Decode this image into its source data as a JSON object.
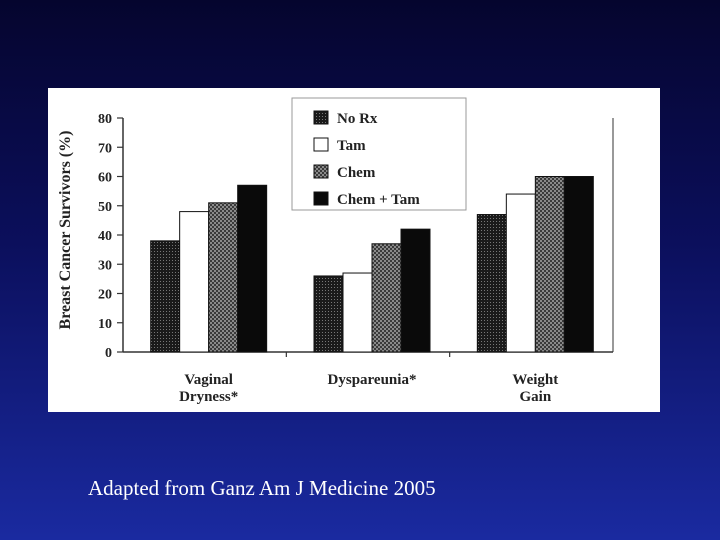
{
  "caption": "Adapted from Ganz Am J Medicine 2005",
  "chart_data": {
    "type": "bar",
    "title": "",
    "ylabel": "Breast Cancer Survivors (%)",
    "xlabel": "",
    "ylim": [
      0,
      80
    ],
    "yticks": [
      0,
      10,
      20,
      30,
      40,
      50,
      60,
      70,
      80
    ],
    "legend_position": "top-center",
    "grid": false,
    "categories": [
      [
        "Vaginal",
        "Dryness*"
      ],
      [
        "Dyspareunia*"
      ],
      [
        "Weight",
        "Gain"
      ]
    ],
    "series": [
      {
        "name": "No Rx",
        "values": [
          38,
          26,
          47
        ],
        "fill": "pattern-dark-dots"
      },
      {
        "name": "Tam",
        "values": [
          48,
          27,
          54
        ],
        "fill": "#ffffff"
      },
      {
        "name": "Chem",
        "values": [
          51,
          37,
          60
        ],
        "fill": "pattern-checker"
      },
      {
        "name": "Chem + Tam",
        "values": [
          57,
          42,
          60
        ],
        "fill": "#0a0a0a"
      }
    ]
  }
}
